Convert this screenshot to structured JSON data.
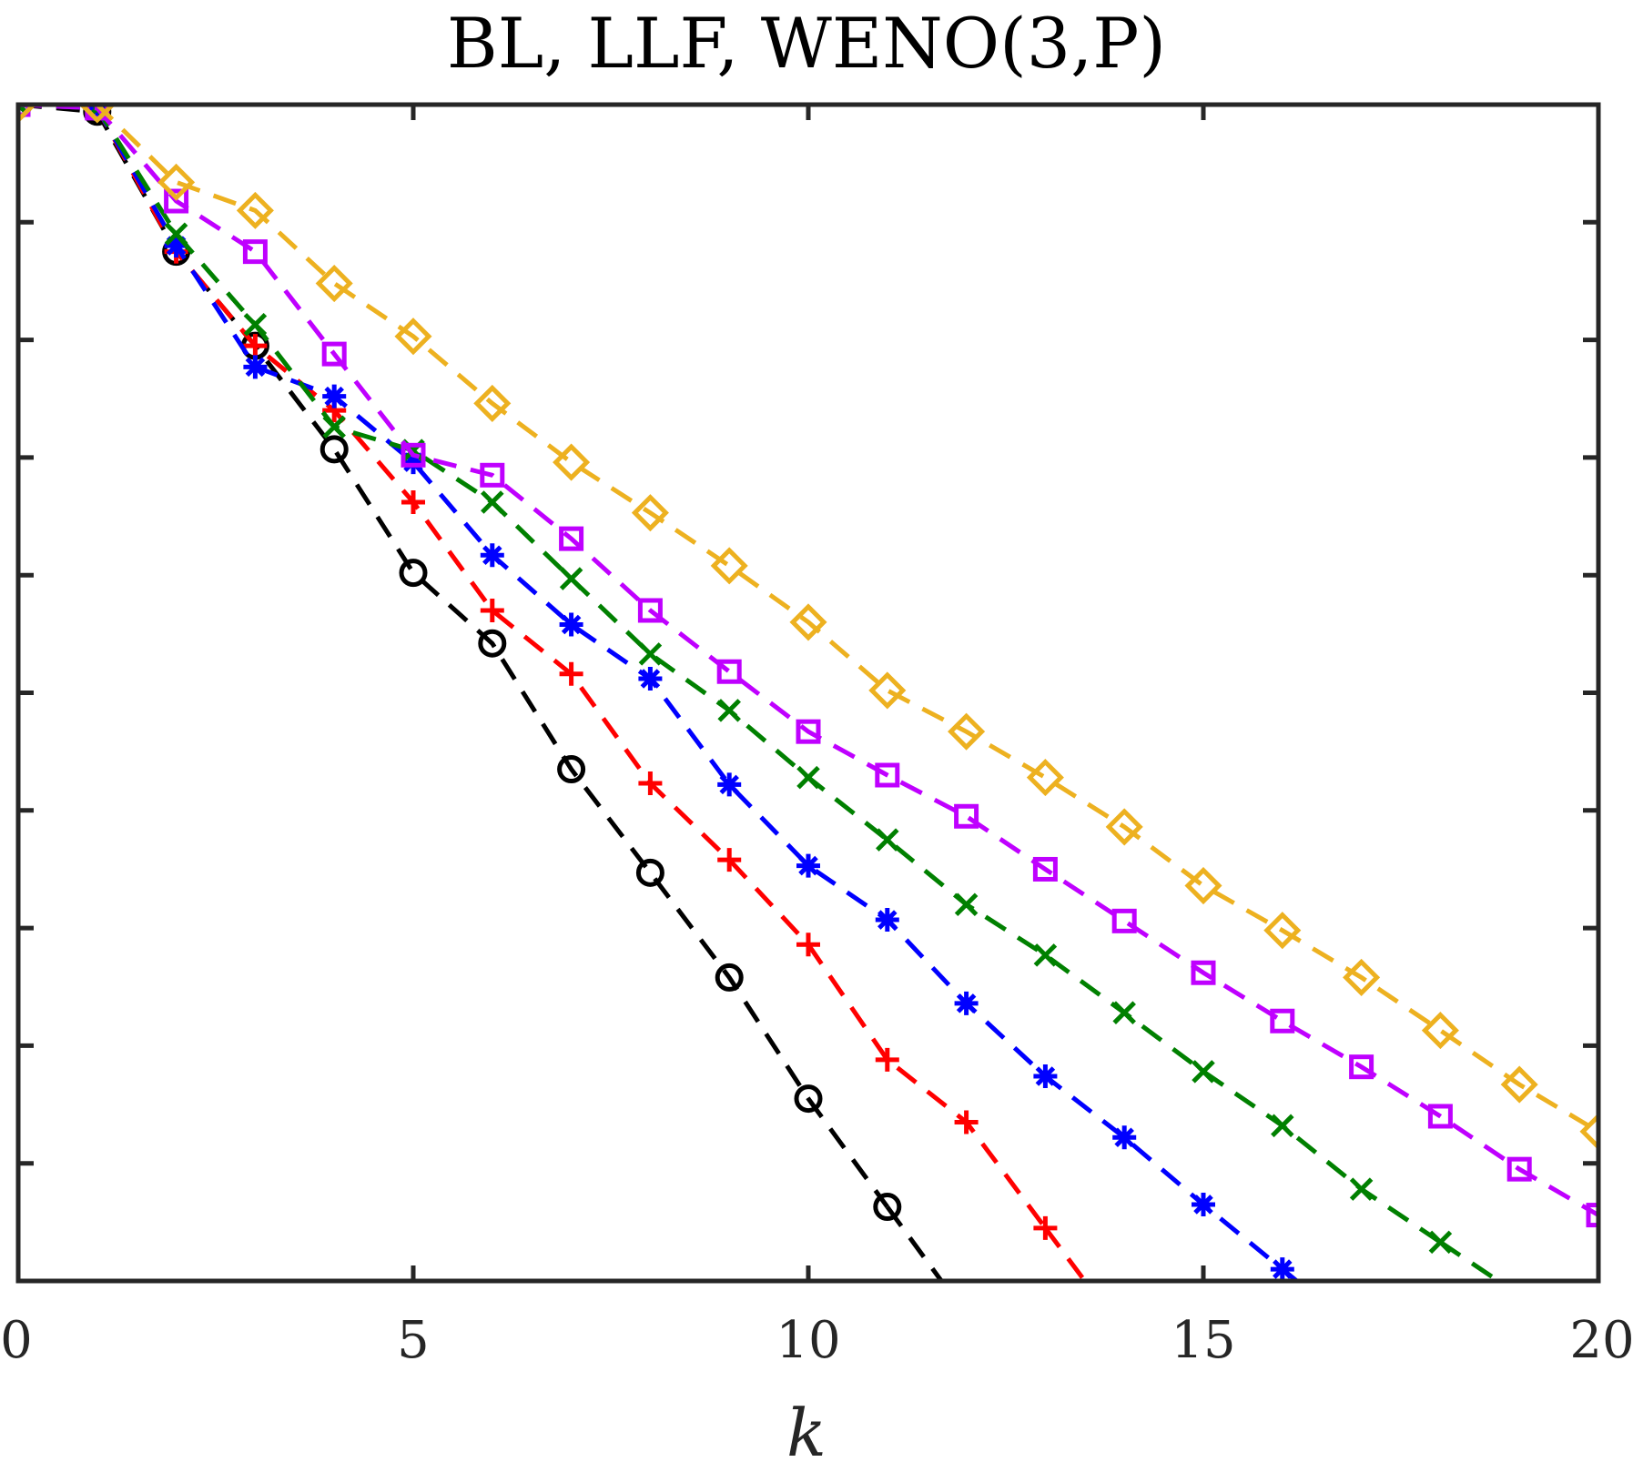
{
  "chart_data": {
    "type": "line",
    "title": "BL, LLF, WENO(3,P)",
    "xlabel": "k",
    "ylabel": "",
    "xlim": [
      0,
      20
    ],
    "ylim": [
      -10,
      0
    ],
    "xticks": [
      0,
      5,
      10,
      15,
      20
    ],
    "xtick_labels": [
      "0",
      "5",
      "10",
      "15",
      "20"
    ],
    "yticks": [
      -10,
      -9,
      -8,
      -7,
      -6,
      -5,
      -4,
      -3,
      -2,
      -1,
      0
    ],
    "ytick_labels_visible": false,
    "grid": false,
    "line_style": "dashed",
    "series": [
      {
        "color": "#000000",
        "marker": "circle",
        "x": [
          0,
          1,
          2,
          3,
          4,
          5,
          6,
          7,
          8,
          9,
          10,
          11
        ],
        "y": [
          0,
          -0.06,
          -1.25,
          -2.05,
          -2.93,
          -3.98,
          -4.58,
          -5.65,
          -6.53,
          -7.42,
          -8.45,
          -9.37
        ]
      },
      {
        "color": "#ff0000",
        "marker": "plus",
        "x": [
          0,
          1,
          2,
          3,
          4,
          5,
          6,
          7,
          8,
          9,
          10,
          11,
          12,
          13
        ],
        "y": [
          0,
          -0.03,
          -1.25,
          -2.05,
          -2.6,
          -3.38,
          -4.3,
          -4.84,
          -5.77,
          -6.42,
          -7.14,
          -8.12,
          -8.65,
          -9.55
        ]
      },
      {
        "color": "#0000ff",
        "marker": "asterisk",
        "x": [
          0,
          1,
          2,
          3,
          4,
          5,
          6,
          7,
          8,
          9,
          10,
          11,
          12,
          13,
          14,
          15,
          16
        ],
        "y": [
          0,
          -0.03,
          -1.2,
          -2.23,
          -2.48,
          -3.04,
          -3.83,
          -4.42,
          -4.88,
          -5.78,
          -6.47,
          -6.93,
          -7.64,
          -8.26,
          -8.78,
          -9.35,
          -9.9
        ]
      },
      {
        "color": "#008000",
        "marker": "x",
        "x": [
          0,
          1,
          2,
          3,
          4,
          5,
          6,
          7,
          8,
          9,
          10,
          11,
          12,
          13,
          14,
          15,
          16,
          17,
          18
        ],
        "y": [
          0,
          -0.03,
          -1.1,
          -1.87,
          -2.74,
          -2.94,
          -3.38,
          -4.03,
          -4.67,
          -5.15,
          -5.72,
          -6.25,
          -6.8,
          -7.23,
          -7.72,
          -8.22,
          -8.68,
          -9.22,
          -9.67
        ]
      },
      {
        "color": "#bf00ff",
        "marker": "square",
        "x": [
          0,
          1,
          2,
          3,
          4,
          5,
          6,
          7,
          8,
          9,
          10,
          11,
          12,
          13,
          14,
          15,
          16,
          17,
          18,
          19,
          20
        ],
        "y": [
          0,
          -0.03,
          -0.82,
          -1.25,
          -2.12,
          -2.98,
          -3.15,
          -3.69,
          -4.3,
          -4.82,
          -5.33,
          -5.7,
          -6.05,
          -6.5,
          -6.94,
          -7.38,
          -7.79,
          -8.18,
          -8.6,
          -9.05,
          -9.44
        ]
      },
      {
        "color": "#edb120",
        "marker": "diamond",
        "x": [
          0,
          1,
          2,
          3,
          4,
          5,
          6,
          7,
          8,
          9,
          10,
          11,
          12,
          13,
          14,
          15,
          16,
          17,
          18,
          19,
          20
        ],
        "y": [
          0,
          0,
          -0.66,
          -0.9,
          -1.52,
          -1.97,
          -2.54,
          -3.04,
          -3.47,
          -3.92,
          -4.4,
          -4.98,
          -5.33,
          -5.72,
          -6.14,
          -6.64,
          -7.02,
          -7.42,
          -7.87,
          -8.33,
          -8.73
        ]
      }
    ]
  }
}
